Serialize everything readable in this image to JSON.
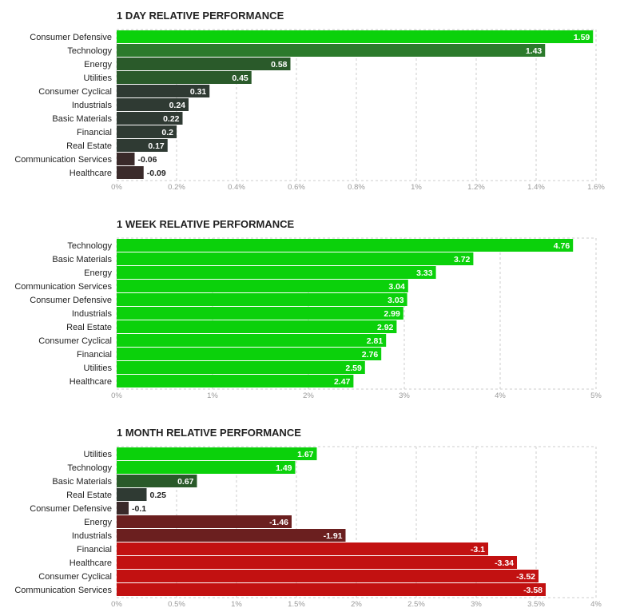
{
  "colors": {
    "strong_positive": "#0bd10b",
    "mid_positive": "#2c7a2c",
    "dark_positive": "#2a5a2a",
    "slate": "#2f3a33",
    "near_zero_negative": "#3a2a2a",
    "dark_negative": "#6b1f1f",
    "mid_negative": "#9a1414",
    "strong_negative": "#c21111",
    "grid": "#cccccc"
  },
  "chart_data": [
    {
      "type": "bar",
      "orientation": "horizontal",
      "title": "1 DAY RELATIVE PERFORMANCE",
      "categories": [
        "Consumer Defensive",
        "Technology",
        "Energy",
        "Utilities",
        "Consumer Cyclical",
        "Industrials",
        "Basic Materials",
        "Financial",
        "Real Estate",
        "Communication Services",
        "Healthcare"
      ],
      "values": [
        1.59,
        1.43,
        0.58,
        0.45,
        0.31,
        0.24,
        0.22,
        0.2,
        0.17,
        -0.06,
        -0.09
      ],
      "value_labels": [
        "1.59",
        "1.43",
        "0.58",
        "0.45",
        "0.31",
        "0.24",
        "0.22",
        "0.2",
        "0.17",
        "-0.06",
        "-0.09"
      ],
      "xlim": [
        0,
        1.6
      ],
      "xticks": [
        "0%",
        "0.2%",
        "0.4%",
        "0.6%",
        "0.8%",
        "1%",
        "1.2%",
        "1.4%",
        "1.6%"
      ],
      "grid": true
    },
    {
      "type": "bar",
      "orientation": "horizontal",
      "title": "1 WEEK RELATIVE PERFORMANCE",
      "categories": [
        "Technology",
        "Basic Materials",
        "Energy",
        "Communication Services",
        "Consumer Defensive",
        "Industrials",
        "Real Estate",
        "Consumer Cyclical",
        "Financial",
        "Utilities",
        "Healthcare"
      ],
      "values": [
        4.76,
        3.72,
        3.33,
        3.04,
        3.03,
        2.99,
        2.92,
        2.81,
        2.76,
        2.59,
        2.47
      ],
      "value_labels": [
        "4.76",
        "3.72",
        "3.33",
        "3.04",
        "3.03",
        "2.99",
        "2.92",
        "2.81",
        "2.76",
        "2.59",
        "2.47"
      ],
      "xlim": [
        0,
        5
      ],
      "xticks": [
        "0%",
        "1%",
        "2%",
        "3%",
        "4%",
        "5%"
      ],
      "grid": true
    },
    {
      "type": "bar",
      "orientation": "horizontal",
      "title": "1 MONTH RELATIVE PERFORMANCE",
      "categories": [
        "Utilities",
        "Technology",
        "Basic Materials",
        "Real Estate",
        "Consumer Defensive",
        "Energy",
        "Industrials",
        "Financial",
        "Healthcare",
        "Consumer Cyclical",
        "Communication Services"
      ],
      "values": [
        1.67,
        1.49,
        0.67,
        0.25,
        -0.1,
        -1.46,
        -1.91,
        -3.1,
        -3.34,
        -3.52,
        -3.58
      ],
      "value_labels": [
        "1.67",
        "1.49",
        "0.67",
        "0.25",
        "-0.1",
        "-1.46",
        "-1.91",
        "-3.1",
        "-3.34",
        "-3.52",
        "-3.58"
      ],
      "xlim": [
        0,
        4
      ],
      "xticks": [
        "0%",
        "0.5%",
        "1%",
        "1.5%",
        "2%",
        "2.5%",
        "3%",
        "3.5%",
        "4%"
      ],
      "grid": true
    }
  ]
}
